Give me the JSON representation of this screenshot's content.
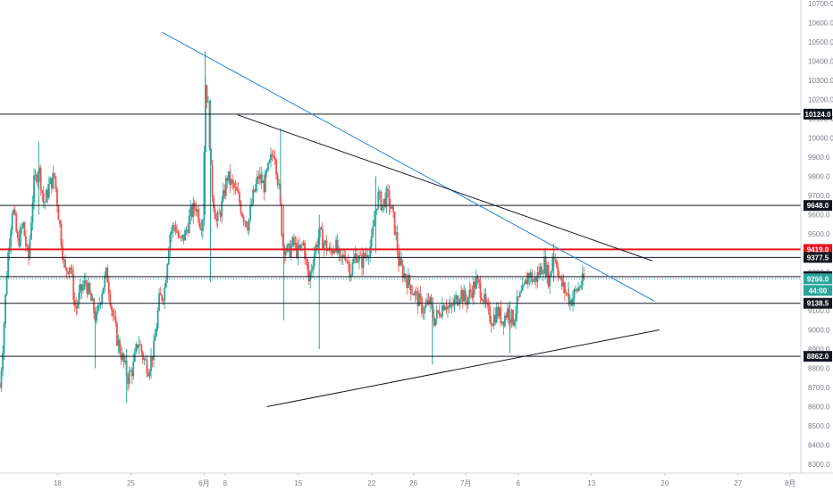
{
  "chart_data": {
    "type": "candlestick",
    "y_axis_side": "right",
    "ylim": [
      8250,
      10750
    ],
    "y_ticks": [
      "8300.0",
      "8400.0",
      "8500.0",
      "8600.0",
      "8700.0",
      "8800.0",
      "8900.0",
      "9000.0",
      "9100.0",
      "9200.0",
      "9300.0",
      "9400.0",
      "9500.0",
      "9600.0",
      "9700.0",
      "9800.0",
      "9900.0",
      "10000.0",
      "10100.0",
      "10200.0",
      "10300.0",
      "10400.0",
      "10500.0",
      "10600.0",
      "10700.0"
    ],
    "x_ticks": [
      {
        "label": "18",
        "pos": 1
      },
      {
        "label": "25",
        "pos": 8
      },
      {
        "label": "6月",
        "pos": 15
      },
      {
        "label": "8",
        "pos": 17
      },
      {
        "label": "15",
        "pos": 24
      },
      {
        "label": "22",
        "pos": 31
      },
      {
        "label": "26",
        "pos": 35
      },
      {
        "label": "7月",
        "pos": 40
      },
      {
        "label": "6",
        "pos": 45
      },
      {
        "label": "13",
        "pos": 52
      },
      {
        "label": "20",
        "pos": 59
      },
      {
        "label": "27",
        "pos": 66
      },
      {
        "label": "8月",
        "pos": 71
      }
    ],
    "x_range": [
      -4.5,
      72
    ],
    "price_path": [
      [
        -4.5,
        8700
      ],
      [
        -4.2,
        8950
      ],
      [
        -3.8,
        9350
      ],
      [
        -3.3,
        9650
      ],
      [
        -2.8,
        9450
      ],
      [
        -2.3,
        9550
      ],
      [
        -1.8,
        9350
      ],
      [
        -1.3,
        9750
      ],
      [
        -0.8,
        9850
      ],
      [
        -0.3,
        9650
      ],
      [
        0.2,
        9750
      ],
      [
        0.7,
        9800
      ],
      [
        1.2,
        9550
      ],
      [
        1.7,
        9300
      ],
      [
        2.2,
        9350
      ],
      [
        2.7,
        9100
      ],
      [
        3.2,
        9200
      ],
      [
        3.7,
        9250
      ],
      [
        4.2,
        9150
      ],
      [
        4.7,
        9050
      ],
      [
        5.2,
        9200
      ],
      [
        5.7,
        9300
      ],
      [
        6.2,
        9100
      ],
      [
        6.7,
        8950
      ],
      [
        7.2,
        8850
      ],
      [
        7.7,
        8750
      ],
      [
        8.2,
        8800
      ],
      [
        8.7,
        8950
      ],
      [
        9.2,
        8850
      ],
      [
        9.7,
        8800
      ],
      [
        10.2,
        8900
      ],
      [
        10.7,
        9150
      ],
      [
        11.2,
        9200
      ],
      [
        11.7,
        9500
      ],
      [
        12.2,
        9550
      ],
      [
        12.7,
        9450
      ],
      [
        13.2,
        9500
      ],
      [
        13.7,
        9600
      ],
      [
        14.2,
        9650
      ],
      [
        14.7,
        9550
      ],
      [
        14.9,
        9600
      ],
      [
        15.1,
        10300
      ],
      [
        15.4,
        10150
      ],
      [
        15.7,
        9750
      ],
      [
        16.2,
        9550
      ],
      [
        16.7,
        9650
      ],
      [
        17.2,
        9800
      ],
      [
        17.7,
        9750
      ],
      [
        18.2,
        9700
      ],
      [
        18.7,
        9600
      ],
      [
        19.2,
        9550
      ],
      [
        19.7,
        9700
      ],
      [
        20.2,
        9800
      ],
      [
        20.7,
        9750
      ],
      [
        21.2,
        9850
      ],
      [
        21.7,
        9950
      ],
      [
        22.2,
        9700
      ],
      [
        22.5,
        9450
      ],
      [
        23.0,
        9400
      ],
      [
        23.5,
        9450
      ],
      [
        24.0,
        9400
      ],
      [
        24.5,
        9450
      ],
      [
        25.0,
        9250
      ],
      [
        25.5,
        9400
      ],
      [
        26.0,
        9500
      ],
      [
        26.5,
        9450
      ],
      [
        27.0,
        9400
      ],
      [
        27.5,
        9450
      ],
      [
        28.0,
        9350
      ],
      [
        28.5,
        9400
      ],
      [
        29.0,
        9300
      ],
      [
        29.5,
        9400
      ],
      [
        30.0,
        9350
      ],
      [
        30.5,
        9400
      ],
      [
        31.0,
        9450
      ],
      [
        31.3,
        9600
      ],
      [
        31.6,
        9700
      ],
      [
        32.0,
        9650
      ],
      [
        32.5,
        9700
      ],
      [
        33.0,
        9600
      ],
      [
        33.3,
        9500
      ],
      [
        33.6,
        9350
      ],
      [
        34.0,
        9300
      ],
      [
        34.5,
        9250
      ],
      [
        35.0,
        9200
      ],
      [
        35.5,
        9150
      ],
      [
        36.0,
        9100
      ],
      [
        36.5,
        9150
      ],
      [
        37.0,
        9050
      ],
      [
        37.5,
        9100
      ],
      [
        38.0,
        9150
      ],
      [
        38.5,
        9100
      ],
      [
        39.0,
        9150
      ],
      [
        39.5,
        9200
      ],
      [
        40.0,
        9150
      ],
      [
        40.5,
        9200
      ],
      [
        41.0,
        9250
      ],
      [
        41.5,
        9200
      ],
      [
        42.0,
        9100
      ],
      [
        42.5,
        9050
      ],
      [
        43.0,
        9100
      ],
      [
        43.5,
        9050
      ],
      [
        44.0,
        9100
      ],
      [
        44.5,
        9050
      ],
      [
        45.0,
        9150
      ],
      [
        45.5,
        9200
      ],
      [
        46.0,
        9300
      ],
      [
        46.5,
        9250
      ],
      [
        47.0,
        9300
      ],
      [
        47.5,
        9350
      ],
      [
        48.0,
        9250
      ],
      [
        48.3,
        9400
      ],
      [
        48.7,
        9350
      ],
      [
        49.0,
        9250
      ],
      [
        49.5,
        9200
      ],
      [
        50.0,
        9150
      ],
      [
        50.5,
        9200
      ],
      [
        51.0,
        9240
      ],
      [
        51.4,
        9266
      ]
    ],
    "spikes": [
      {
        "x": 15.1,
        "high": 10450,
        "low": 9600
      },
      {
        "x": 15.6,
        "high": 10200,
        "low": 9250
      },
      {
        "x": 22.3,
        "high": 10050,
        "low": 9700
      },
      {
        "x": 22.6,
        "high": 9650,
        "low": 9050
      },
      {
        "x": 26.0,
        "high": 9600,
        "low": 8900
      },
      {
        "x": 31.4,
        "high": 9800,
        "low": 9400
      },
      {
        "x": 36.8,
        "high": 9150,
        "low": 8820
      },
      {
        "x": 44.2,
        "high": 9150,
        "low": 8880
      },
      {
        "x": 48.4,
        "high": 9450,
        "low": 9250
      },
      {
        "x": 49.8,
        "high": 9250,
        "low": 9130
      },
      {
        "x": 7.6,
        "high": 8900,
        "low": 8620
      },
      {
        "x": 4.6,
        "high": 9100,
        "low": 8800
      },
      {
        "x": -0.8,
        "high": 9980,
        "low": 9600
      }
    ],
    "horizontal_levels": [
      {
        "value": 10124.0,
        "label": "10124.0",
        "color": "#131722",
        "badge": "#131722"
      },
      {
        "value": 9648.0,
        "label": "9648.0",
        "color": "#131722",
        "badge": "#131722"
      },
      {
        "value": 9419.0,
        "label": "9419.0",
        "color": "#e8141e",
        "badge": "#e8141e"
      },
      {
        "value": 9377.5,
        "label": "9377.5",
        "color": "#131722",
        "badge": "#131722"
      },
      {
        "value": 9277.5,
        "label": "9277.5",
        "color": "#131722",
        "badge": "#131722"
      },
      {
        "value": 9138.5,
        "label": "9138.5",
        "color": "#131722",
        "badge": "#131722"
      },
      {
        "value": 8862.0,
        "label": "8862.0",
        "color": "#131722",
        "badge": "#131722"
      }
    ],
    "current_price": {
      "value": 9266.0,
      "label": "9266.0",
      "color": "#26a69a"
    },
    "countdown": {
      "label": "44:00",
      "color": "#26a69a"
    },
    "trendlines": [
      {
        "color": "#2e86d6",
        "from": [
          11.0,
          10550
        ],
        "to": [
          58.0,
          9150
        ]
      },
      {
        "color": "#131722",
        "from": [
          18.2,
          10120
        ],
        "to": [
          57.8,
          9360
        ]
      },
      {
        "color": "#131722",
        "from": [
          21.0,
          8600
        ],
        "to": [
          58.5,
          9000
        ]
      }
    ],
    "colors": {
      "up": "#26a69a",
      "down": "#ef5350",
      "grid": "none",
      "axis_text": "#7a7e87"
    }
  }
}
